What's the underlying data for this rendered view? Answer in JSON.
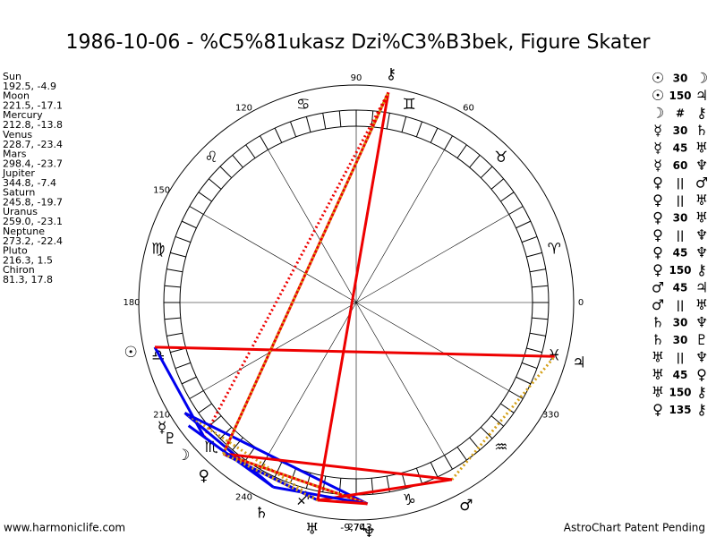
{
  "header": {
    "title": "1986-10-06 - %C5%81ukasz Dzi%C3%B3bek, Figure Skater"
  },
  "planets": [
    {
      "name": "Sun",
      "glyph": "☉",
      "coords": "192.5, -4.9",
      "lon": 192.5,
      "lat": -4.9
    },
    {
      "name": "Moon",
      "glyph": "☽",
      "coords": "221.5, -17.1",
      "lon": 221.5,
      "lat": -17.1
    },
    {
      "name": "Mercury",
      "glyph": "☿",
      "coords": "212.8, -13.8",
      "lon": 212.8,
      "lat": -13.8
    },
    {
      "name": "Venus",
      "glyph": "♀",
      "coords": "228.7, -23.4",
      "lon": 228.7,
      "lat": -23.4
    },
    {
      "name": "Mars",
      "glyph": "♂",
      "coords": "298.4, -23.7",
      "lon": 298.4,
      "lat": -23.7
    },
    {
      "name": "Jupiter",
      "glyph": "♃",
      "coords": "344.8, -7.4",
      "lon": 344.8,
      "lat": -7.4
    },
    {
      "name": "Saturn",
      "glyph": "♄",
      "coords": "245.8, -19.7",
      "lon": 245.8,
      "lat": -19.7
    },
    {
      "name": "Uranus",
      "glyph": "♅",
      "coords": "259.0, -23.1",
      "lon": 259.0,
      "lat": -23.1
    },
    {
      "name": "Neptune",
      "glyph": "♆",
      "coords": "273.2, -22.4",
      "lon": 273.2,
      "lat": -22.4
    },
    {
      "name": "Pluto",
      "glyph": "♇",
      "coords": "216.3, 1.5",
      "lon": 216.3,
      "lat": 1.5
    },
    {
      "name": "Chiron",
      "glyph": "⚷",
      "coords": "81.3, 17.8",
      "lon": 81.3,
      "lat": 17.8
    }
  ],
  "signs": [
    "♈",
    "♉",
    "♊",
    "♋",
    "♌",
    "♍",
    "♎",
    "♏",
    "♐",
    "♑",
    "♒",
    "♓"
  ],
  "degree_labels": [
    0,
    60,
    90,
    120,
    150,
    180,
    210,
    240,
    270,
    330
  ],
  "bottom_label": "-9,743",
  "aspects": [
    [
      "☉",
      "30",
      "☽"
    ],
    [
      "☉",
      "150",
      "♃"
    ],
    [
      "☽",
      "#",
      "⚷"
    ],
    [
      "☿",
      "30",
      "♄"
    ],
    [
      "☿",
      "45",
      "♅"
    ],
    [
      "☿",
      "60",
      "♆"
    ],
    [
      "♀",
      "||",
      "♂"
    ],
    [
      "♀",
      "||",
      "♅"
    ],
    [
      "♀",
      "30",
      "♅"
    ],
    [
      "♀",
      "||",
      "♆"
    ],
    [
      "♀",
      "45",
      "♆"
    ],
    [
      "♀",
      "150",
      "⚷"
    ],
    [
      "♂",
      "45",
      "♃"
    ],
    [
      "♂",
      "||",
      "♅"
    ],
    [
      "♄",
      "30",
      "♆"
    ],
    [
      "♄",
      "30",
      "♇"
    ],
    [
      "♅",
      "||",
      "♆"
    ],
    [
      "♅",
      "45",
      "♀"
    ],
    [
      "♅",
      "150",
      "⚷"
    ],
    [
      "♀",
      "135",
      "⚷"
    ]
  ],
  "footer": {
    "left": "www.harmoniclife.com",
    "right": "AstroChart Patent Pending"
  }
}
